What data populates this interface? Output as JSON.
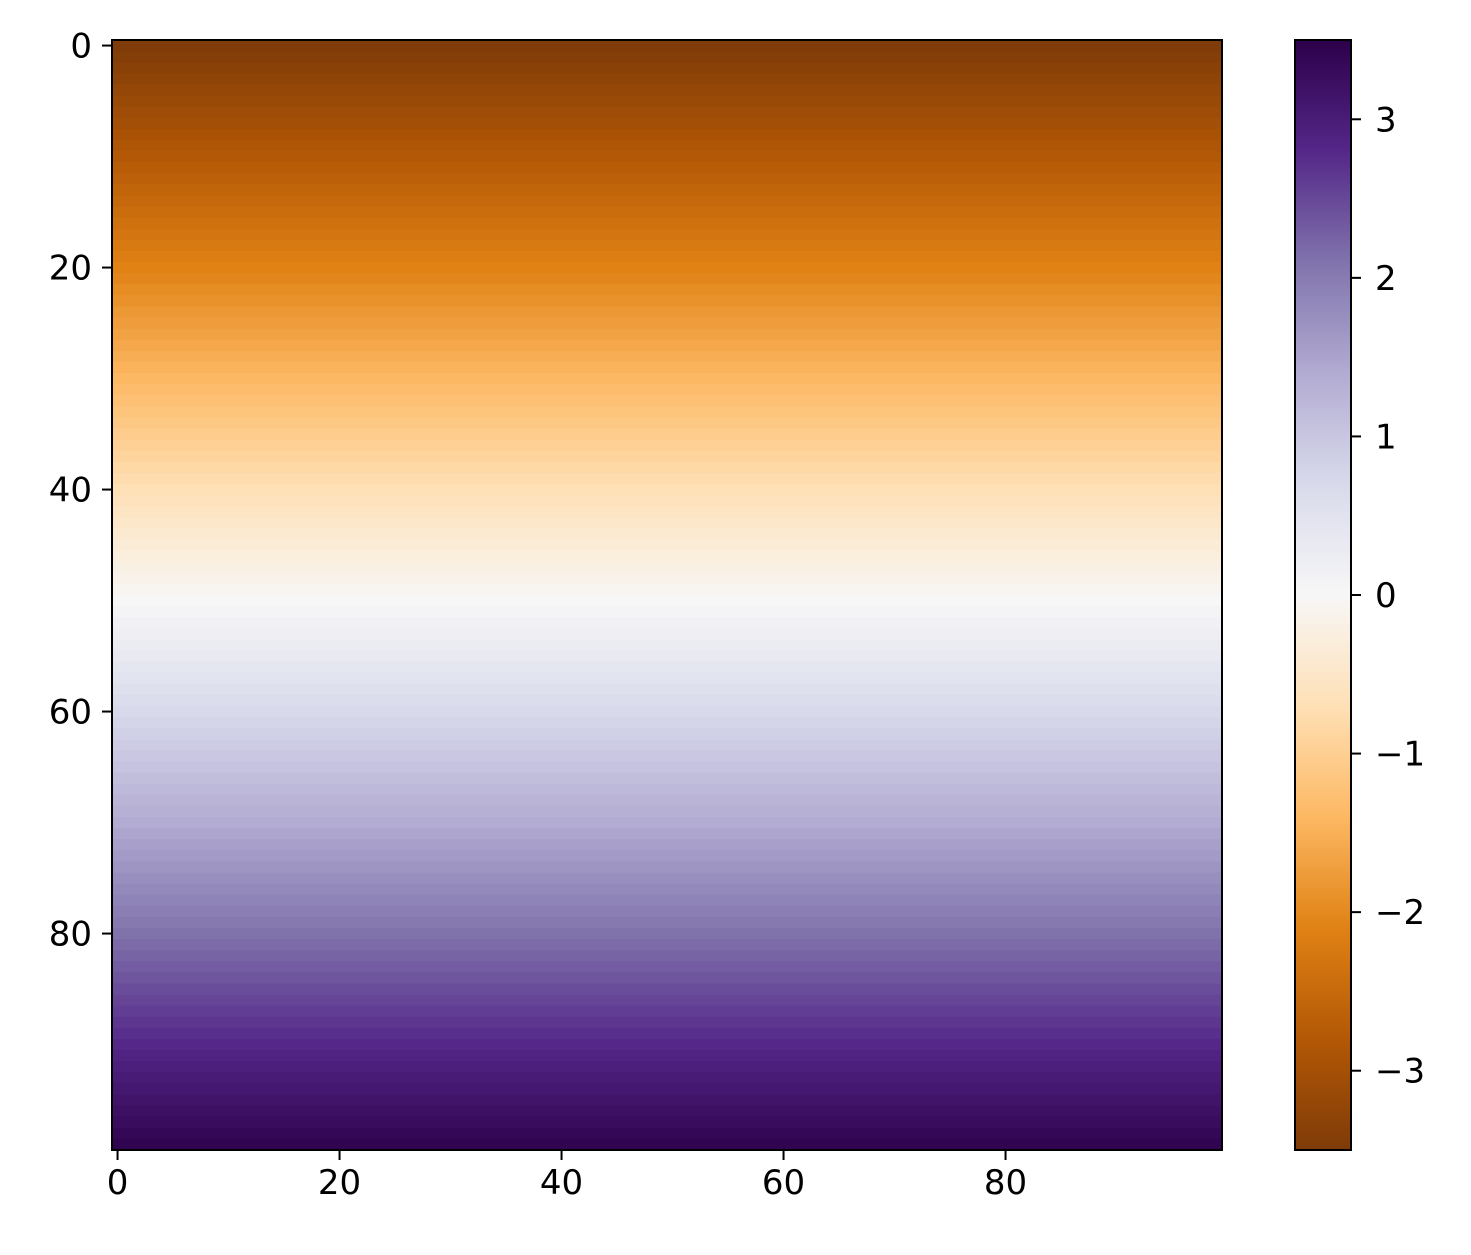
{
  "chart_data": {
    "type": "heatmap",
    "title": "",
    "xlabel": "",
    "ylabel": "",
    "colormap": "PuOr",
    "shape": [
      100,
      100
    ],
    "value_description": "values vary along rows; roughly constant across columns",
    "row_values": [
      -3.5,
      -3.43,
      -3.36,
      -3.29,
      -3.22,
      -3.15,
      -3.08,
      -3.01,
      -2.94,
      -2.87,
      -2.8,
      -2.73,
      -2.66,
      -2.59,
      -2.52,
      -2.45,
      -2.38,
      -2.31,
      -2.24,
      -2.17,
      -2.1,
      -2.03,
      -1.96,
      -1.89,
      -1.82,
      -1.75,
      -1.68,
      -1.61,
      -1.54,
      -1.47,
      -1.4,
      -1.33,
      -1.26,
      -1.19,
      -1.12,
      -1.05,
      -0.98,
      -0.91,
      -0.84,
      -0.77,
      -0.7,
      -0.63,
      -0.56,
      -0.49,
      -0.42,
      -0.35,
      -0.28,
      -0.21,
      -0.14,
      -0.07,
      0.0,
      0.07,
      0.14,
      0.21,
      0.28,
      0.35,
      0.42,
      0.49,
      0.56,
      0.63,
      0.7,
      0.77,
      0.84,
      0.91,
      0.98,
      1.05,
      1.12,
      1.19,
      1.26,
      1.33,
      1.4,
      1.47,
      1.54,
      1.61,
      1.68,
      1.75,
      1.82,
      1.89,
      1.96,
      2.03,
      2.1,
      2.17,
      2.24,
      2.31,
      2.38,
      2.45,
      2.52,
      2.59,
      2.66,
      2.73,
      2.8,
      2.87,
      2.94,
      3.01,
      3.08,
      3.15,
      3.22,
      3.29,
      3.36,
      3.43
    ],
    "x_range": [
      0,
      99
    ],
    "y_range": [
      0,
      99
    ],
    "y_inverted": true,
    "x_ticks": [
      0,
      20,
      40,
      60,
      80
    ],
    "x_tick_labels": [
      "0",
      "20",
      "40",
      "60",
      "80"
    ],
    "y_ticks": [
      0,
      20,
      40,
      60,
      80
    ],
    "y_tick_labels": [
      "0",
      "20",
      "40",
      "60",
      "80"
    ],
    "colorbar": {
      "range": [
        -3.5,
        3.5
      ],
      "ticks": [
        -3,
        -2,
        -1,
        0,
        1,
        2,
        3
      ],
      "tick_labels": [
        "−3",
        "−2",
        "−1",
        "0",
        "1",
        "2",
        "3"
      ]
    },
    "colormap_stops": [
      "#7f3b08",
      "#b35806",
      "#e08214",
      "#fdb863",
      "#fee0b6",
      "#f7f7f7",
      "#d8daeb",
      "#b2abd2",
      "#8073ac",
      "#542788",
      "#2d004b"
    ]
  }
}
